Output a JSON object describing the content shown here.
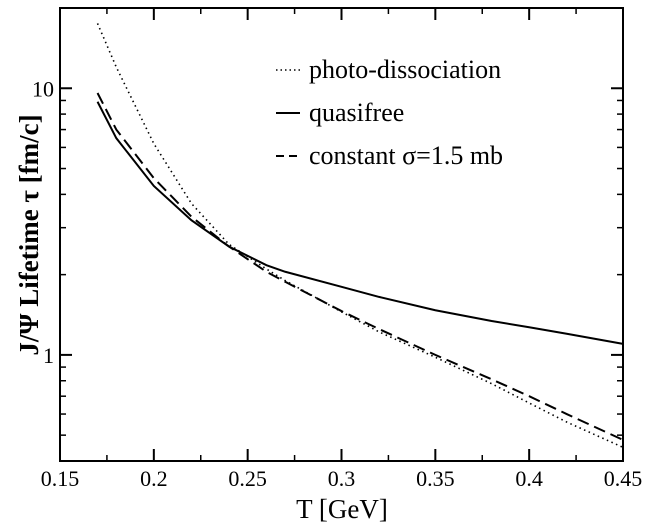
{
  "chart_data": {
    "type": "line",
    "xlabel": "T [GeV]",
    "ylabel": "J/Ψ Lifetime τ [fm/c]",
    "xlim": [
      0.15,
      0.45
    ],
    "ylim": [
      0.4,
      20
    ],
    "yscale": "log",
    "grid": false,
    "legend_position": "top-right",
    "x_ticks": [
      0.15,
      0.2,
      0.25,
      0.3,
      0.35,
      0.4,
      0.45
    ],
    "x_tick_labels": [
      "0.15",
      "0.2",
      "0.25",
      "0.3",
      "0.35",
      "0.4",
      "0.45"
    ],
    "y_ticks": [
      1,
      10
    ],
    "y_tick_labels": [
      "1",
      "10"
    ],
    "series": [
      {
        "name": "photo-dissociation",
        "style": "dotted",
        "x": [
          0.17,
          0.18,
          0.2,
          0.22,
          0.24,
          0.26,
          0.27,
          0.3,
          0.32,
          0.35,
          0.38,
          0.4,
          0.42,
          0.45
        ],
        "y": [
          17.5,
          12.0,
          6.2,
          3.7,
          2.6,
          2.1,
          1.9,
          1.45,
          1.22,
          0.98,
          0.78,
          0.66,
          0.56,
          0.45
        ]
      },
      {
        "name": "quasifree",
        "style": "solid",
        "x": [
          0.17,
          0.18,
          0.2,
          0.22,
          0.24,
          0.26,
          0.27,
          0.3,
          0.32,
          0.35,
          0.38,
          0.4,
          0.42,
          0.45
        ],
        "y": [
          8.9,
          6.5,
          4.3,
          3.2,
          2.55,
          2.17,
          2.05,
          1.8,
          1.65,
          1.47,
          1.34,
          1.27,
          1.2,
          1.1
        ]
      },
      {
        "name": "constant σ=1.5 mb",
        "style": "dashed",
        "x": [
          0.17,
          0.18,
          0.2,
          0.22,
          0.24,
          0.26,
          0.27,
          0.3,
          0.32,
          0.35,
          0.38,
          0.4,
          0.42,
          0.45
        ],
        "y": [
          9.6,
          7.0,
          4.6,
          3.3,
          2.55,
          2.05,
          1.88,
          1.46,
          1.25,
          1.0,
          0.81,
          0.7,
          0.6,
          0.48
        ]
      }
    ]
  }
}
